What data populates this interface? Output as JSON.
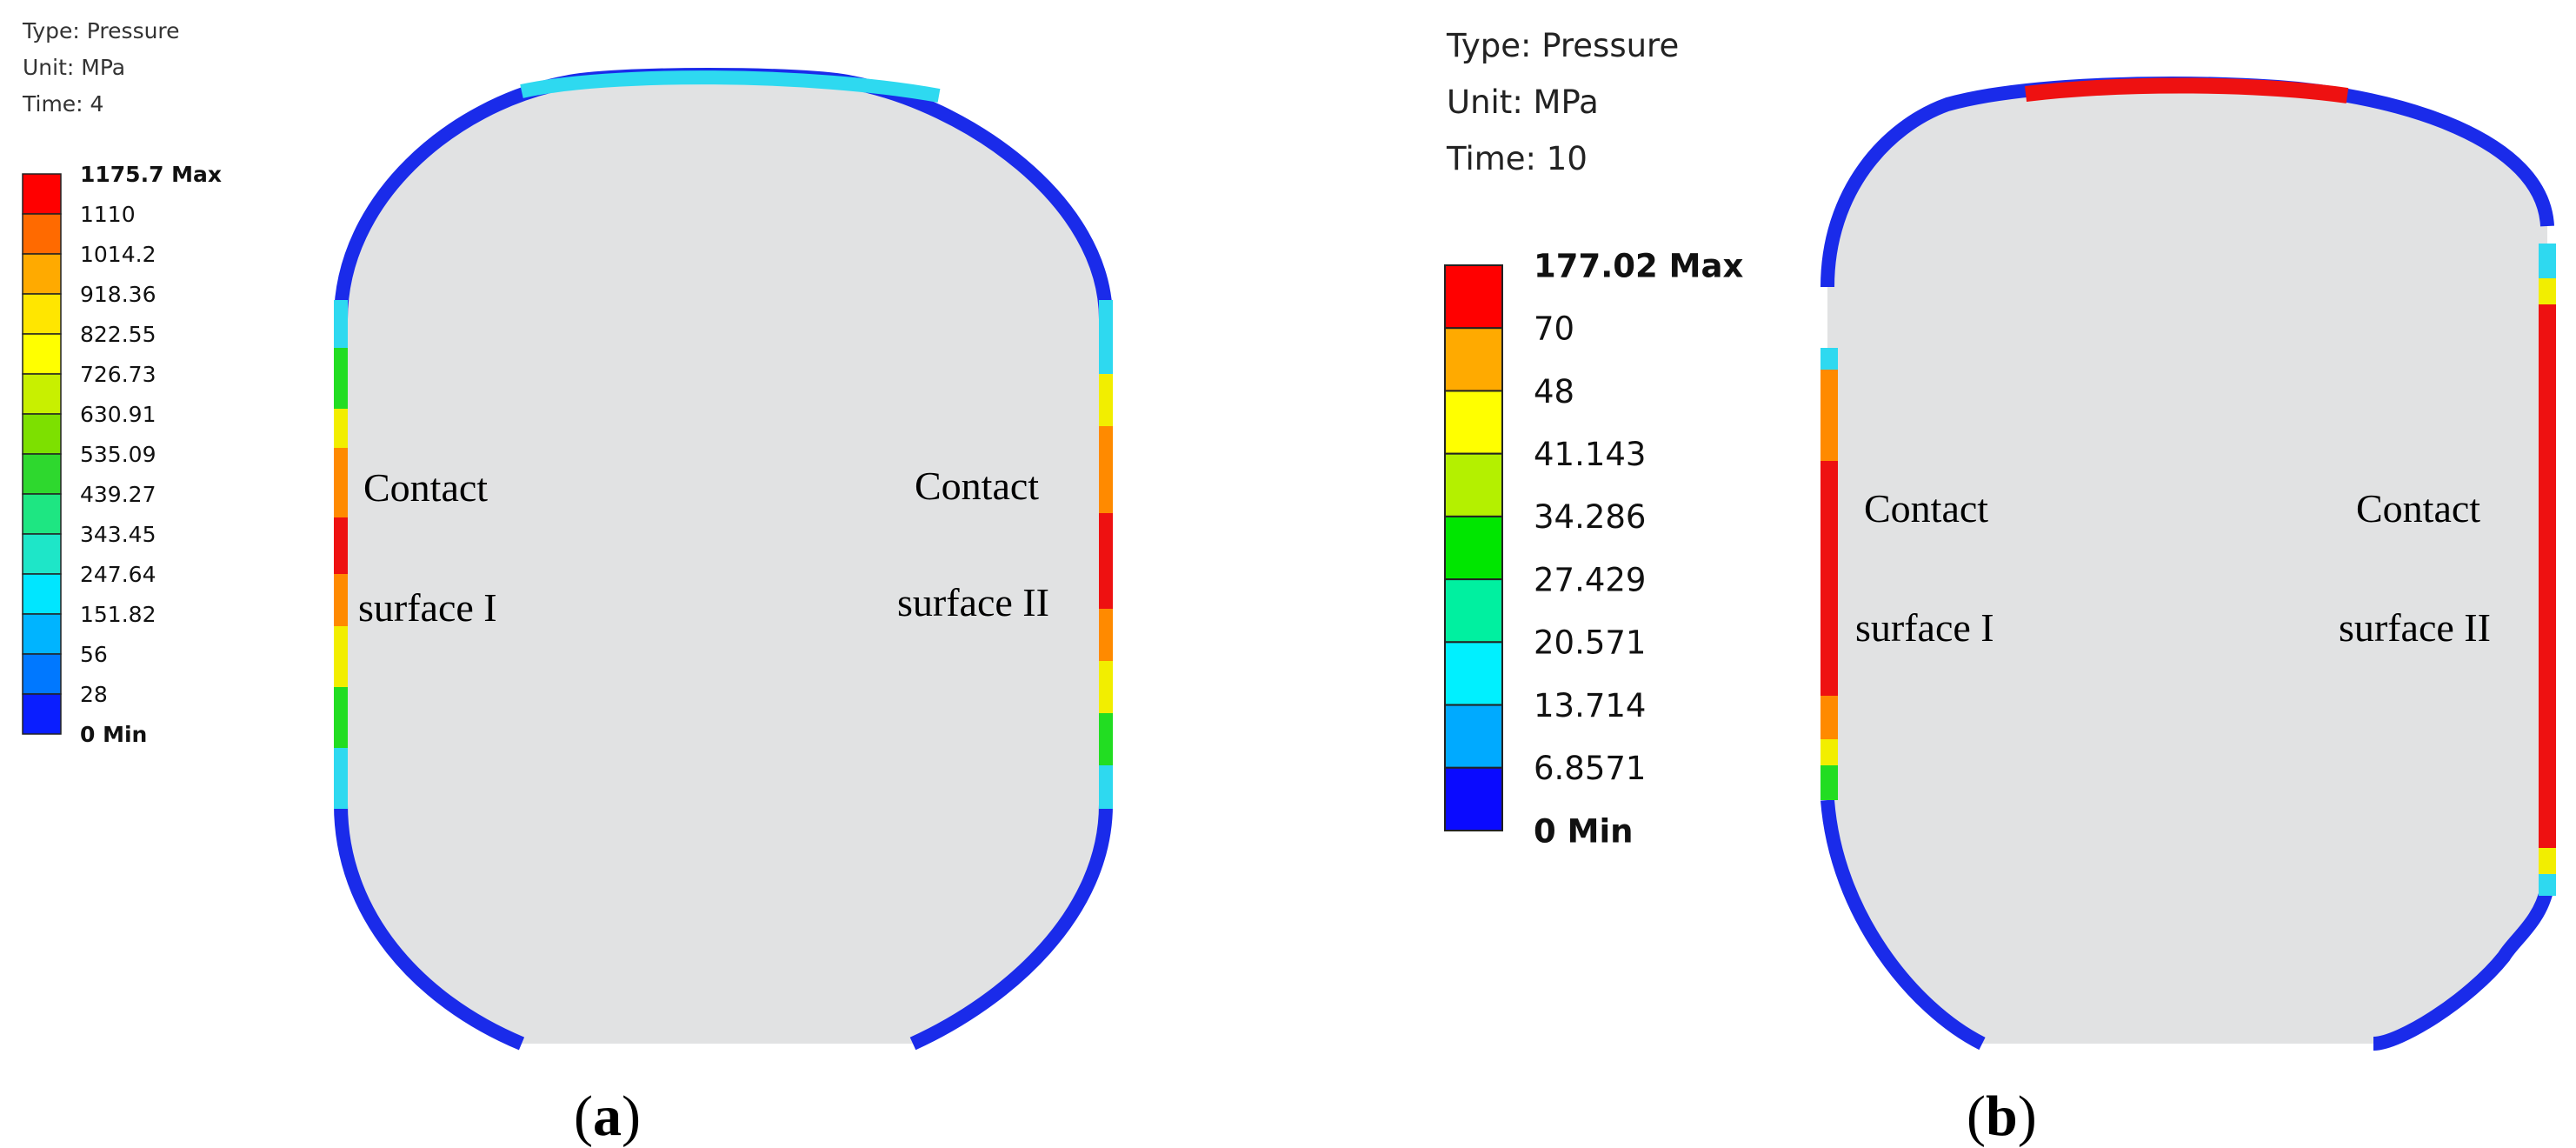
{
  "panels": [
    {
      "label_prefix": "(",
      "label_letter": "a",
      "label_suffix": ")",
      "info": {
        "type": "Type: Pressure",
        "unit": "Unit: MPa",
        "time": "Time: 4"
      },
      "legend": {
        "max_label": "1175.7 Max",
        "min_label": "0 Min",
        "ticks": [
          "1110",
          "1014.2",
          "918.36",
          "822.55",
          "726.73",
          "630.91",
          "535.09",
          "439.27",
          "343.45",
          "247.64",
          "151.82",
          "56",
          "28"
        ],
        "colors": [
          "#ff0000",
          "#ff6a00",
          "#ffaa00",
          "#ffe600",
          "#ffff00",
          "#c8f000",
          "#7de000",
          "#2ed82e",
          "#1ee682",
          "#1ee6c8",
          "#00e6ff",
          "#00b4ff",
          "#0078ff",
          "#0a1eff"
        ]
      },
      "contact_left": {
        "line1": "Contact",
        "line2": "surface I"
      },
      "contact_right": {
        "line1": "Contact",
        "line2": "surface II"
      }
    },
    {
      "label_prefix": "(",
      "label_letter": "b",
      "label_suffix": ")",
      "info": {
        "type": "Type: Pressure",
        "unit": "Unit: MPa",
        "time": "Time: 10"
      },
      "legend": {
        "max_label": "177.02 Max",
        "min_label": "0 Min",
        "ticks": [
          "70",
          "48",
          "41.143",
          "34.286",
          "27.429",
          "20.571",
          "13.714",
          "6.8571"
        ],
        "colors": [
          "#ff0000",
          "#ffaa00",
          "#ffff00",
          "#b4f000",
          "#00e600",
          "#00f0a0",
          "#00f0ff",
          "#00aaff",
          "#0a0aff"
        ]
      },
      "contact_left": {
        "line1": "Contact",
        "line2": "surface I"
      },
      "contact_right": {
        "line1": "Contact",
        "line2": "surface II"
      }
    }
  ],
  "colors": {
    "body_fill": "#e1e2e3",
    "rim_blue": "#1a2bea",
    "rim_cyan": "#2ed9f0",
    "rim_red": "#ee1111",
    "rim_orange": "#ff8a00",
    "rim_yellow": "#f2ee00",
    "rim_green": "#22dd22",
    "rim_lime": "#a8ee00"
  }
}
